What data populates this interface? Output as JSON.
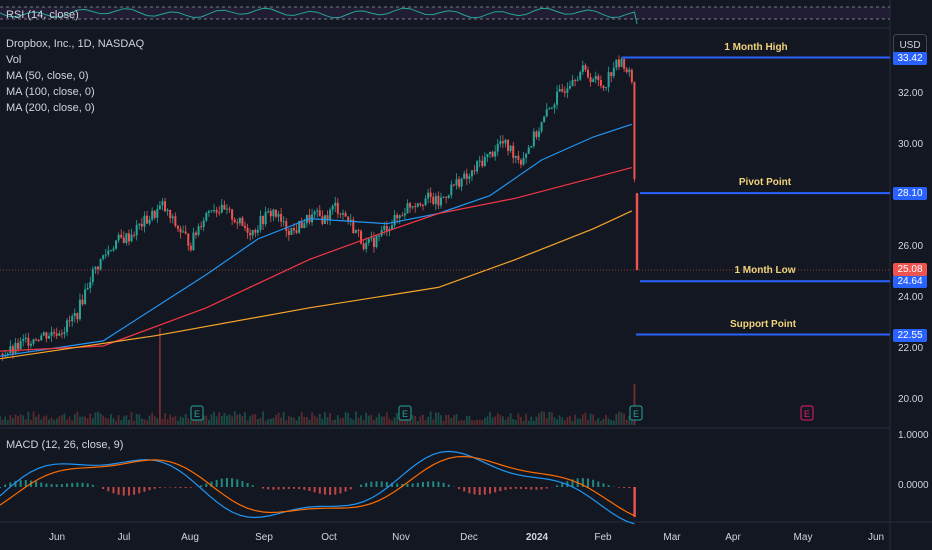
{
  "currency_button": "USD",
  "rsi_label": "RSI (14, close)",
  "legend": {
    "title": "Dropbox, Inc., 1D, NASDAQ",
    "vol": "Vol",
    "ma50": "MA (50, close, 0)",
    "ma100": "MA (100, close, 0)",
    "ma200": "MA (200, close, 0)"
  },
  "macd_label": "MACD (12, 26, close, 9)",
  "macd_axis": [
    "1.0000",
    "0.0000"
  ],
  "colors": {
    "up": "#26a69a",
    "down": "#ef5350",
    "ma50": "#2196f3",
    "ma100": "#f23645",
    "ma200": "#f7a52a",
    "level": "#2962ff",
    "label_text": "#f0d37a"
  },
  "chart_data": {
    "type": "candlestick",
    "ylim": [
      19,
      34.5
    ],
    "y_ticks": [
      "32.00",
      "30.00",
      "26.00",
      "24.00",
      "22.00",
      "20.00"
    ],
    "y_tick_values": [
      32,
      30,
      26,
      24,
      22,
      20
    ],
    "x_ticks": [
      "Jun",
      "Jul",
      "Aug",
      "Sep",
      "Oct",
      "Nov",
      "Dec",
      "2024",
      "Feb",
      "Mar",
      "Apr",
      "May",
      "Jun"
    ],
    "price_labels": [
      {
        "name": "1 Month High",
        "value": 33.42
      },
      {
        "name": "Pivot Point",
        "value": 28.1
      },
      {
        "name": "1 Month Low",
        "value": 24.64
      },
      {
        "name": "Support Point",
        "value": 22.55
      }
    ],
    "last_price": 25.08,
    "close_path": [
      [
        0,
        21.8
      ],
      [
        5,
        21.9
      ],
      [
        10,
        22.3
      ],
      [
        15,
        22.5
      ],
      [
        20,
        22.6
      ],
      [
        25,
        22.8
      ],
      [
        30,
        23.4
      ],
      [
        35,
        24.8
      ],
      [
        40,
        25.6
      ],
      [
        45,
        26.2
      ],
      [
        50,
        26.4
      ],
      [
        55,
        26.9
      ],
      [
        60,
        27.3
      ],
      [
        63,
        27.6
      ],
      [
        66,
        27.1
      ],
      [
        70,
        26.6
      ],
      [
        74,
        26.1
      ],
      [
        78,
        27.0
      ],
      [
        82,
        27.6
      ],
      [
        86,
        27.4
      ],
      [
        90,
        27.2
      ],
      [
        94,
        26.8
      ],
      [
        98,
        26.6
      ],
      [
        102,
        27.1
      ],
      [
        106,
        27.4
      ],
      [
        110,
        26.8
      ],
      [
        114,
        26.6
      ],
      [
        118,
        27.0
      ],
      [
        122,
        27.2
      ],
      [
        126,
        27.1
      ],
      [
        130,
        27.6
      ],
      [
        134,
        27.2
      ],
      [
        138,
        26.6
      ],
      [
        142,
        26.0
      ],
      [
        146,
        26.3
      ],
      [
        150,
        26.8
      ],
      [
        154,
        27.1
      ],
      [
        158,
        27.6
      ],
      [
        162,
        27.8
      ],
      [
        166,
        27.9
      ],
      [
        170,
        27.7
      ],
      [
        174,
        28.2
      ],
      [
        178,
        28.6
      ],
      [
        182,
        28.7
      ],
      [
        186,
        29.3
      ],
      [
        190,
        29.6
      ],
      [
        194,
        30.1
      ],
      [
        198,
        29.8
      ],
      [
        202,
        29.4
      ],
      [
        206,
        30.1
      ],
      [
        210,
        30.8
      ],
      [
        214,
        31.6
      ],
      [
        218,
        32.1
      ],
      [
        222,
        32.7
      ],
      [
        226,
        32.9
      ],
      [
        230,
        32.6
      ],
      [
        234,
        32.3
      ],
      [
        238,
        33.1
      ],
      [
        242,
        33.2
      ],
      [
        245,
        32.5
      ],
      [
        247,
        25.1
      ]
    ],
    "series": [
      {
        "name": "MA (50, close, 0)",
        "values": [
          [
            0,
            21.7
          ],
          [
            40,
            22.3
          ],
          [
            80,
            24.9
          ],
          [
            100,
            26.3
          ],
          [
            120,
            27.1
          ],
          [
            150,
            26.9
          ],
          [
            170,
            27.3
          ],
          [
            190,
            28.0
          ],
          [
            210,
            29.4
          ],
          [
            230,
            30.3
          ],
          [
            245,
            30.8
          ]
        ]
      },
      {
        "name": "MA (100, close, 0)",
        "values": [
          [
            0,
            21.9
          ],
          [
            40,
            22.1
          ],
          [
            80,
            23.6
          ],
          [
            120,
            25.5
          ],
          [
            150,
            26.6
          ],
          [
            170,
            27.3
          ],
          [
            200,
            27.9
          ],
          [
            230,
            28.7
          ],
          [
            245,
            29.1
          ]
        ]
      },
      {
        "name": "MA (200, close, 0)",
        "values": [
          [
            0,
            21.6
          ],
          [
            60,
            22.5
          ],
          [
            120,
            23.6
          ],
          [
            170,
            24.4
          ],
          [
            200,
            25.5
          ],
          [
            230,
            26.7
          ],
          [
            245,
            27.4
          ]
        ]
      }
    ],
    "earnings_markers": [
      "E",
      "E",
      "E",
      "E"
    ]
  }
}
